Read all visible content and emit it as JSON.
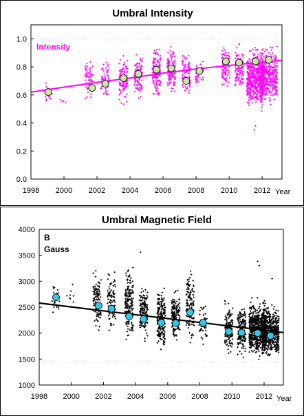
{
  "chart_data": [
    {
      "type": "scatter",
      "title": "Umbral Intensity",
      "annotation": "Intensity",
      "xunit": "Year",
      "x_ticks": [
        "1998",
        "2000",
        "2002",
        "2004",
        "2006",
        "2008",
        "2010",
        "2012"
      ],
      "y_ticks": [
        "0.0",
        "0.2",
        "0.4",
        "0.6",
        "0.8",
        "1.0"
      ],
      "xlim": [
        1998,
        2013.2
      ],
      "ylim": [
        0,
        1.1
      ],
      "grid": false,
      "reference_line_y": 1.0,
      "colors": {
        "points": "#ff00ff",
        "fit": "#ff00ff",
        "means_fill": "#c8e6a0",
        "reference": "#ffb3ff"
      },
      "fit_curve": {
        "x": [
          1998,
          2000,
          2002,
          2004,
          2006,
          2008,
          2010,
          2012,
          2013.2
        ],
        "y": [
          0.62,
          0.655,
          0.69,
          0.72,
          0.755,
          0.785,
          0.81,
          0.835,
          0.845
        ]
      },
      "scatter_clusters": [
        {
          "x": 1999.05,
          "n": 20,
          "y_min": 0.5,
          "y_max": 0.72
        },
        {
          "x": 1999.9,
          "n": 4,
          "y_min": 0.52,
          "y_max": 0.58
        },
        {
          "x": 2001.5,
          "n": 60,
          "y_min": 0.53,
          "y_max": 0.88
        },
        {
          "x": 2002.5,
          "n": 55,
          "y_min": 0.55,
          "y_max": 0.88
        },
        {
          "x": 2003.6,
          "n": 110,
          "y_min": 0.5,
          "y_max": 0.92
        },
        {
          "x": 2004.5,
          "n": 100,
          "y_min": 0.55,
          "y_max": 0.93
        },
        {
          "x": 2005.6,
          "n": 150,
          "y_min": 0.55,
          "y_max": 0.97
        },
        {
          "x": 2006.5,
          "n": 110,
          "y_min": 0.57,
          "y_max": 0.97
        },
        {
          "x": 2007.4,
          "n": 90,
          "y_min": 0.52,
          "y_max": 0.93
        },
        {
          "x": 2008.2,
          "n": 40,
          "y_min": 0.62,
          "y_max": 0.88
        },
        {
          "x": 2009.8,
          "n": 90,
          "y_min": 0.6,
          "y_max": 0.99
        },
        {
          "x": 2010.6,
          "n": 110,
          "y_min": 0.58,
          "y_max": 0.99
        },
        {
          "x": 2011.6,
          "n": 500,
          "y_min": 0.45,
          "y_max": 0.99
        },
        {
          "x": 2012.4,
          "n": 350,
          "y_min": 0.5,
          "y_max": 0.99
        }
      ],
      "outliers": {
        "x": [
          2011.55,
          2011.6
        ],
        "y": [
          0.35,
          0.38
        ]
      },
      "means": {
        "x": [
          1999.05,
          2001.7,
          2002.5,
          2003.6,
          2004.5,
          2005.6,
          2006.5,
          2007.4,
          2008.2,
          2009.8,
          2010.6,
          2011.6,
          2012.4
        ],
        "y": [
          0.62,
          0.65,
          0.68,
          0.72,
          0.75,
          0.78,
          0.79,
          0.7,
          0.77,
          0.84,
          0.83,
          0.84,
          0.85
        ]
      }
    },
    {
      "type": "scatter",
      "title": "Umbral Magnetic Field",
      "annotation_lines": [
        "B",
        "Gauss"
      ],
      "xunit": "Year",
      "x_ticks": [
        "1998",
        "2000",
        "2002",
        "2004",
        "2006",
        "2008",
        "2010",
        "2012"
      ],
      "y_ticks": [
        "1000",
        "1500",
        "2000",
        "2500",
        "3000",
        "3500",
        "4000"
      ],
      "xlim": [
        1998,
        2013.2
      ],
      "ylim": [
        1000,
        4000
      ],
      "grid": false,
      "reference_line_y": 1450,
      "colors": {
        "points": "#000000",
        "fit": "#000000",
        "means_fill": "#30c8e8",
        "reference": "#aadcf0"
      },
      "fit_curve": {
        "x": [
          1998,
          2013.2
        ],
        "y": [
          2580,
          2010
        ]
      },
      "scatter_clusters": [
        {
          "x": 1999.05,
          "n": 25,
          "y_min": 2300,
          "y_max": 3000
        },
        {
          "x": 1999.9,
          "n": 8,
          "y_min": 2400,
          "y_max": 3100
        },
        {
          "x": 2001.6,
          "n": 100,
          "y_min": 1850,
          "y_max": 3300
        },
        {
          "x": 2002.5,
          "n": 90,
          "y_min": 1900,
          "y_max": 3300
        },
        {
          "x": 2003.6,
          "n": 180,
          "y_min": 1700,
          "y_max": 3450
        },
        {
          "x": 2004.5,
          "n": 150,
          "y_min": 1750,
          "y_max": 3100
        },
        {
          "x": 2005.6,
          "n": 220,
          "y_min": 1550,
          "y_max": 3000
        },
        {
          "x": 2006.5,
          "n": 160,
          "y_min": 1700,
          "y_max": 2900
        },
        {
          "x": 2007.4,
          "n": 130,
          "y_min": 1700,
          "y_max": 3400
        },
        {
          "x": 2008.2,
          "n": 50,
          "y_min": 1650,
          "y_max": 2700
        },
        {
          "x": 2009.8,
          "n": 140,
          "y_min": 1500,
          "y_max": 2700
        },
        {
          "x": 2010.6,
          "n": 170,
          "y_min": 1500,
          "y_max": 2600
        },
        {
          "x": 2011.6,
          "n": 700,
          "y_min": 1450,
          "y_max": 2700
        },
        {
          "x": 2012.4,
          "n": 500,
          "y_min": 1450,
          "y_max": 2650
        }
      ],
      "outliers": {
        "x": [
          2004.3,
          2011.6,
          2011.7,
          2012.5
        ],
        "y": [
          3560,
          3380,
          3300,
          3050
        ]
      },
      "means": {
        "x": [
          1999.05,
          2001.7,
          2002.5,
          2003.6,
          2004.5,
          2005.6,
          2006.5,
          2007.4,
          2008.2,
          2009.8,
          2010.6,
          2011.6,
          2012.4
        ],
        "y": [
          2690,
          2530,
          2470,
          2320,
          2270,
          2200,
          2190,
          2400,
          2200,
          2030,
          2010,
          2000,
          1950
        ]
      }
    }
  ]
}
